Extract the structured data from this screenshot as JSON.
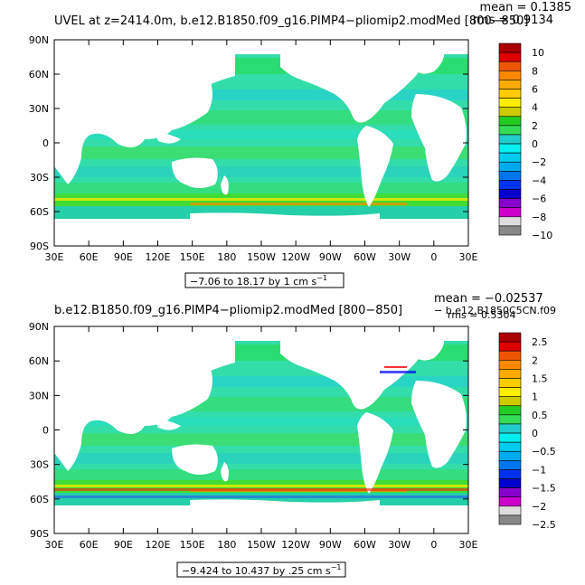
{
  "panels": [
    {
      "title": "UVEL at z=2414.0m, b.e12.B1850.f09_g16.PIMP4−pliomip2.modMed [800−850]",
      "mean": "mean = 0.1385",
      "rms": "rms = 0.9134",
      "range_label": "−7.06 to 18.17 by 1 cm s",
      "range_unit_exp": "−1",
      "lat_labels": [
        "90N",
        "60N",
        "30N",
        "0",
        "30S",
        "60S",
        "90S"
      ],
      "lon_labels": [
        "30E",
        "60E",
        "90E",
        "120E",
        "150E",
        "180",
        "150W",
        "120W",
        "90W",
        "60W",
        "30W",
        "0",
        "30E"
      ],
      "colorbar_labels": [
        "10",
        "8",
        "6",
        "4",
        "2",
        "0",
        "−2",
        "−4",
        "−6",
        "−8",
        "−10"
      ]
    },
    {
      "title": "b.e12.B1850.f09_g16.PIMP4−pliomip2.modMed [800−850]",
      "subtitle_right": "− b.e12.B1850C5CN.f09",
      "mean": "mean = −0.02537",
      "rms": "rms = 0.5304",
      "range_label": "−9.424 to 10.437 by .25 cm s",
      "range_unit_exp": "−1",
      "lat_labels": [
        "90N",
        "60N",
        "30N",
        "0",
        "30S",
        "60S",
        "90S"
      ],
      "lon_labels": [
        "30E",
        "60E",
        "90E",
        "120E",
        "150E",
        "180",
        "150W",
        "120W",
        "90W",
        "60W",
        "30W",
        "0",
        "30E"
      ],
      "colorbar_labels": [
        "2.5",
        "2",
        "1.5",
        "1",
        "0.5",
        "0",
        "−0.5",
        "−1",
        "−1.5",
        "−2",
        "−2.5"
      ]
    }
  ],
  "colors": {
    "ocean_main": "#22dd22",
    "ocean_light": "#33cc88",
    "ocean_cyan": "#22ddcc",
    "land": "#ffffff",
    "colorbar": [
      "#aa0000",
      "#dd0000",
      "#ee5500",
      "#ff8800",
      "#ffaa00",
      "#ffcc00",
      "#ffee00",
      "#cccc00",
      "#22cc22",
      "#33dd55",
      "#22cccc",
      "#00eeee",
      "#00ccee",
      "#00aaee",
      "#0077ee",
      "#0033ee",
      "#0000cc",
      "#8800cc",
      "#cc00cc",
      "#dddddd",
      "#888888"
    ]
  }
}
